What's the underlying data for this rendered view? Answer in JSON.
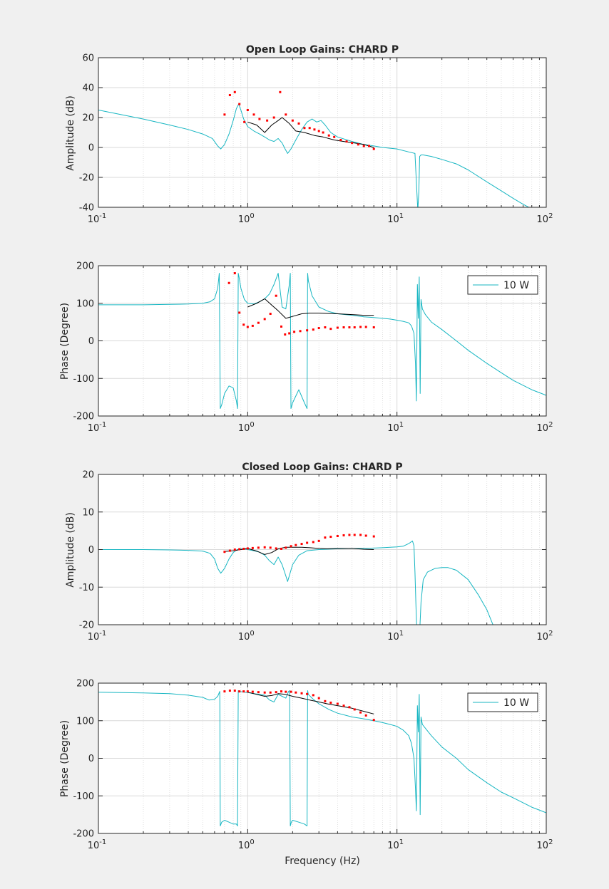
{
  "colors": {
    "figure_bg": "#f0f0f0",
    "axes_bg": "#ffffff",
    "model": "#17b6c2",
    "measured_black": "#000000",
    "measured_red": "#ff0000",
    "grid": "#d9d9d9",
    "text": "#262626"
  },
  "chart_data": [
    {
      "id": "ol_amp",
      "type": "line",
      "title": "Open Loop Gains: CHARD P",
      "xlabel": "",
      "ylabel": "Amplitude (dB)",
      "xscale": "log",
      "xlim": [
        0.1,
        100
      ],
      "ylim": [
        -40,
        60
      ],
      "yticks": [
        -40,
        -20,
        0,
        20,
        40,
        60
      ],
      "xticks": [
        0.1,
        1,
        10,
        100
      ],
      "xtick_labels": [
        {
          "base": "10",
          "exp": "-1"
        },
        {
          "base": "10",
          "exp": "0"
        },
        {
          "base": "10",
          "exp": "1"
        },
        {
          "base": "10",
          "exp": "2"
        }
      ],
      "grid": true,
      "legend": null,
      "series": [
        {
          "style": "model",
          "x": [
            0.1,
            0.2,
            0.3,
            0.4,
            0.5,
            0.58,
            0.63,
            0.66,
            0.7,
            0.75,
            0.8,
            0.84,
            0.87,
            0.9,
            0.94,
            1.0,
            1.1,
            1.2,
            1.3,
            1.4,
            1.5,
            1.6,
            1.7,
            1.78,
            1.85,
            1.95,
            2.1,
            2.3,
            2.5,
            2.7,
            2.9,
            3.1,
            3.3,
            3.6,
            4.0,
            5.0,
            6.0,
            7.0,
            8.0,
            10.0,
            12.0,
            13.2,
            13.6,
            13.8,
            14.0,
            14.2,
            14.5,
            15.0,
            17.0,
            20.0,
            25.0,
            30.0,
            40.0,
            50.0,
            60.0,
            70.0,
            80.0
          ],
          "y": [
            25,
            19,
            15,
            12,
            9,
            6,
            1,
            -1,
            2,
            9,
            18,
            26,
            29,
            25,
            19,
            14,
            11,
            9,
            7,
            5,
            4,
            6,
            3,
            -1,
            -4,
            -1,
            5,
            12,
            17,
            19,
            17,
            18,
            15,
            10,
            7,
            4,
            2,
            1,
            0,
            -1,
            -3,
            -4,
            -30,
            -42,
            -30,
            -6,
            -5,
            -5,
            -6,
            -8,
            -11,
            -15,
            -23,
            -29,
            -34,
            -38,
            -41
          ]
        },
        {
          "style": "black",
          "x": [
            1.0,
            1.15,
            1.3,
            1.45,
            1.6,
            1.7,
            1.9,
            2.1,
            2.4,
            2.8,
            3.2,
            3.8,
            4.4,
            5.2,
            6.0,
            7.0
          ],
          "y": [
            17,
            15,
            10,
            15,
            18,
            20,
            16,
            11,
            10,
            8,
            7,
            5,
            4,
            3,
            2,
            0
          ]
        },
        {
          "style": "red",
          "x": [
            0.7,
            0.76,
            0.82,
            0.88,
            0.95,
            1.0,
            1.1,
            1.2,
            1.35,
            1.5,
            1.65,
            1.8,
            2.0,
            2.2,
            2.4,
            2.6,
            2.8,
            3.0,
            3.2,
            3.5,
            3.8,
            4.2,
            4.6,
            5.0,
            5.5,
            6.0,
            6.5,
            7.0
          ],
          "y": [
            22,
            35,
            37,
            29,
            17,
            25,
            22,
            19,
            18,
            20,
            37,
            22,
            18,
            16,
            13,
            13,
            12,
            11,
            10,
            8,
            7,
            5,
            4,
            3,
            2,
            1,
            1,
            -1
          ]
        }
      ]
    },
    {
      "id": "ol_phase",
      "type": "line",
      "title": "",
      "xlabel": "",
      "ylabel": "Phase (Degree)",
      "xscale": "log",
      "xlim": [
        0.1,
        100
      ],
      "ylim": [
        -200,
        200
      ],
      "yticks": [
        -200,
        -100,
        0,
        100,
        200
      ],
      "xticks": [
        0.1,
        1,
        10,
        100
      ],
      "xtick_labels": [
        {
          "base": "10",
          "exp": "-1"
        },
        {
          "base": "10",
          "exp": "0"
        },
        {
          "base": "10",
          "exp": "1"
        },
        {
          "base": "10",
          "exp": "2"
        }
      ],
      "grid": true,
      "legend": {
        "label": "10 W",
        "placement": "top-right"
      },
      "series": [
        {
          "style": "model",
          "x": [
            0.1,
            0.2,
            0.3,
            0.4,
            0.5,
            0.56,
            0.6,
            0.63,
            0.645,
            0.655,
            0.67,
            0.7,
            0.75,
            0.8,
            0.84,
            0.855,
            0.865,
            0.875,
            0.9,
            0.95,
            1.0,
            1.1,
            1.2,
            1.3,
            1.4,
            1.5,
            1.6,
            1.7,
            1.8,
            1.9,
            1.93,
            1.95,
            2.0,
            2.2,
            2.4,
            2.5,
            2.52,
            2.55,
            2.7,
            3.0,
            3.5,
            4.0,
            5.0,
            6.0,
            7.0,
            8.0,
            9.0,
            10.0,
            11.0,
            12.0,
            12.5,
            13.0,
            13.3,
            13.5,
            13.7,
            13.9,
            14.1,
            14.3,
            14.5,
            14.8,
            15.5,
            17.0,
            20.0,
            25.0,
            30.0,
            40.0,
            50.0,
            60.0,
            80.0,
            100.0
          ],
          "y": [
            96,
            96,
            97,
            98,
            100,
            104,
            112,
            140,
            180,
            -180,
            -170,
            -140,
            -120,
            -125,
            -160,
            -180,
            180,
            170,
            140,
            110,
            100,
            98,
            104,
            112,
            125,
            150,
            180,
            90,
            85,
            150,
            180,
            -180,
            -165,
            -130,
            -165,
            -180,
            180,
            160,
            120,
            90,
            78,
            72,
            68,
            64,
            62,
            60,
            58,
            55,
            52,
            48,
            40,
            20,
            -60,
            -160,
            150,
            60,
            170,
            -140,
            110,
            85,
            70,
            50,
            30,
            0,
            -25,
            -60,
            -85,
            -105,
            -130,
            -145
          ]
        },
        {
          "style": "black",
          "x": [
            1.0,
            1.15,
            1.3,
            1.45,
            1.6,
            1.8,
            2.0,
            2.3,
            2.6,
            3.0,
            3.4,
            4.0,
            5.0,
            6.0,
            7.0
          ],
          "y": [
            90,
            100,
            112,
            95,
            80,
            60,
            65,
            72,
            74,
            74,
            73,
            72,
            70,
            68,
            68
          ]
        },
        {
          "style": "red",
          "x": [
            0.75,
            0.82,
            0.88,
            0.94,
            1.0,
            1.08,
            1.18,
            1.3,
            1.42,
            1.55,
            1.68,
            1.78,
            1.9,
            2.05,
            2.25,
            2.5,
            2.75,
            3.0,
            3.3,
            3.6,
            4.0,
            4.4,
            4.8,
            5.2,
            5.7,
            6.2,
            7.0
          ],
          "y": [
            154,
            180,
            75,
            43,
            37,
            40,
            48,
            58,
            72,
            120,
            38,
            17,
            20,
            24,
            26,
            28,
            30,
            34,
            36,
            32,
            35,
            36,
            36,
            36,
            37,
            37,
            36
          ]
        }
      ]
    },
    {
      "id": "cl_amp",
      "type": "line",
      "title": "Closed Loop Gains: CHARD P",
      "xlabel": "",
      "ylabel": "Amplitude (dB)",
      "xscale": "log",
      "xlim": [
        0.1,
        100
      ],
      "ylim": [
        -20,
        20
      ],
      "yticks": [
        -20,
        -10,
        0,
        10,
        20
      ],
      "xticks": [
        0.1,
        1,
        10,
        100
      ],
      "xtick_labels": [
        {
          "base": "10",
          "exp": "-1"
        },
        {
          "base": "10",
          "exp": "0"
        },
        {
          "base": "10",
          "exp": "1"
        },
        {
          "base": "10",
          "exp": "2"
        }
      ],
      "grid": true,
      "legend": null,
      "series": [
        {
          "style": "model",
          "x": [
            0.1,
            0.2,
            0.3,
            0.4,
            0.5,
            0.56,
            0.6,
            0.63,
            0.66,
            0.7,
            0.75,
            0.8,
            0.85,
            0.9,
            1.0,
            1.1,
            1.2,
            1.3,
            1.4,
            1.5,
            1.6,
            1.7,
            1.8,
            1.85,
            1.9,
            2.0,
            2.2,
            2.5,
            3.0,
            4.0,
            5.0,
            6.0,
            7.0,
            8.0,
            9.0,
            10.0,
            11.0,
            12.0,
            12.7,
            13.0,
            13.2,
            13.4,
            13.6,
            13.8
          ],
          "y": [
            0,
            0,
            -0.1,
            -0.2,
            -0.4,
            -1,
            -2.5,
            -5,
            -6.3,
            -5,
            -2.5,
            -0.8,
            0,
            0.2,
            0,
            -0.3,
            -0.7,
            -1.5,
            -3,
            -4,
            -2,
            -4,
            -7,
            -8.5,
            -7,
            -4,
            -1.5,
            -0.3,
            0,
            0.2,
            0.3,
            0.3,
            0.4,
            0.5,
            0.6,
            0.7,
            0.9,
            1.6,
            2.3,
            1,
            -6,
            -15,
            -22,
            -22
          ]
        },
        {
          "style": "model",
          "x": [
            14.2,
            14.5,
            15.0,
            16.0,
            18.0,
            20.0,
            22.0,
            25.0,
            30.0,
            35.0,
            40.0,
            45.0
          ],
          "y": [
            -22,
            -14,
            -8,
            -6,
            -5,
            -4.8,
            -4.8,
            -5.5,
            -8,
            -12,
            -16,
            -21
          ]
        },
        {
          "style": "black",
          "x": [
            0.7,
            0.8,
            0.9,
            1.0,
            1.15,
            1.3,
            1.45,
            1.6,
            1.8,
            2.0,
            2.3,
            2.6,
            3.0,
            3.4,
            4.0,
            5.0,
            6.0,
            7.0
          ],
          "y": [
            -0.5,
            -0.3,
            0,
            0.3,
            -0.4,
            -1.3,
            -0.8,
            0.2,
            0.6,
            0.6,
            0.6,
            0.5,
            0.3,
            0.2,
            0.3,
            0.3,
            0.1,
            0
          ]
        },
        {
          "style": "red",
          "x": [
            0.7,
            0.76,
            0.82,
            0.88,
            0.94,
            1.0,
            1.08,
            1.18,
            1.3,
            1.42,
            1.55,
            1.68,
            1.8,
            1.95,
            2.1,
            2.3,
            2.5,
            2.75,
            3.0,
            3.3,
            3.6,
            4.0,
            4.4,
            4.8,
            5.2,
            5.7,
            6.2,
            7.0
          ],
          "y": [
            -0.6,
            -0.3,
            0,
            0.1,
            0.2,
            0.3,
            0.4,
            0.5,
            0.6,
            0.5,
            0.3,
            0.2,
            0.5,
            0.9,
            1.2,
            1.5,
            1.8,
            2.0,
            2.3,
            3.2,
            3.4,
            3.6,
            3.8,
            3.9,
            3.9,
            3.9,
            3.7,
            3.5
          ]
        }
      ]
    },
    {
      "id": "cl_phase",
      "type": "line",
      "title": "",
      "xlabel": "Frequency (Hz)",
      "ylabel": "Phase (Degree)",
      "xscale": "log",
      "xlim": [
        0.1,
        100
      ],
      "ylim": [
        -200,
        200
      ],
      "yticks": [
        -200,
        -100,
        0,
        100,
        200
      ],
      "xticks": [
        0.1,
        1,
        10,
        100
      ],
      "xtick_labels": [
        {
          "base": "10",
          "exp": "-1"
        },
        {
          "base": "10",
          "exp": "0"
        },
        {
          "base": "10",
          "exp": "1"
        },
        {
          "base": "10",
          "exp": "2"
        }
      ],
      "grid": true,
      "legend": {
        "label": "10 W",
        "placement": "top-right"
      },
      "series": [
        {
          "style": "model",
          "x": [
            0.1,
            0.2,
            0.3,
            0.4,
            0.5,
            0.55,
            0.6,
            0.63,
            0.65,
            0.655,
            0.67,
            0.7,
            0.75,
            0.8,
            0.84,
            0.855,
            0.865,
            0.88,
            0.95,
            1.0,
            1.1,
            1.2,
            1.3,
            1.4,
            1.5,
            1.6,
            1.7,
            1.8,
            1.88,
            1.91,
            1.93,
            1.96,
            2.0,
            2.2,
            2.4,
            2.5,
            2.52,
            2.55,
            2.7,
            3.0,
            3.5,
            4.0,
            5.0,
            6.0,
            7.0,
            8.0,
            9.0,
            10.0,
            11.0,
            12.0,
            12.5,
            13.0,
            13.3,
            13.5,
            13.7,
            13.9,
            14.1,
            14.3,
            14.5,
            14.8,
            15.5,
            17.0,
            20.0,
            25.0,
            30.0,
            40.0,
            50.0,
            60.0,
            80.0,
            100.0
          ],
          "y": [
            176,
            174,
            172,
            168,
            162,
            155,
            157,
            165,
            178,
            -180,
            -170,
            -165,
            -170,
            -175,
            -175,
            -180,
            180,
            178,
            176,
            175,
            172,
            170,
            168,
            155,
            150,
            170,
            165,
            160,
            178,
            180,
            -180,
            -170,
            -165,
            -170,
            -175,
            -180,
            180,
            170,
            160,
            145,
            130,
            120,
            110,
            105,
            100,
            95,
            90,
            85,
            75,
            60,
            40,
            0,
            -80,
            -140,
            140,
            70,
            170,
            -150,
            110,
            90,
            80,
            60,
            30,
            0,
            -30,
            -65,
            -90,
            -105,
            -130,
            -145
          ]
        },
        {
          "style": "black",
          "x": [
            1.0,
            1.15,
            1.3,
            1.45,
            1.6,
            1.8,
            2.0,
            2.3,
            2.6,
            3.0,
            3.4,
            4.0,
            5.0,
            6.0,
            7.0
          ],
          "y": [
            176,
            170,
            165,
            167,
            172,
            170,
            165,
            160,
            155,
            150,
            145,
            140,
            133,
            125,
            118
          ]
        },
        {
          "style": "red",
          "x": [
            0.7,
            0.76,
            0.82,
            0.88,
            0.94,
            1.0,
            1.08,
            1.18,
            1.3,
            1.42,
            1.55,
            1.68,
            1.8,
            1.95,
            2.1,
            2.3,
            2.5,
            2.75,
            3.0,
            3.3,
            3.6,
            4.0,
            4.4,
            4.8,
            5.2,
            5.7,
            6.2,
            7.0
          ],
          "y": [
            178,
            180,
            180,
            178,
            178,
            178,
            177,
            176,
            175,
            175,
            176,
            178,
            177,
            177,
            175,
            173,
            171,
            168,
            160,
            152,
            148,
            145,
            140,
            136,
            130,
            122,
            114,
            102
          ]
        }
      ]
    }
  ]
}
